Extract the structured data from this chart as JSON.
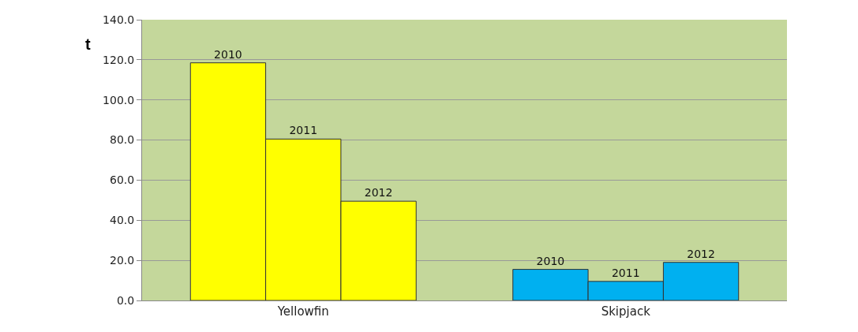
{
  "chart_data": {
    "type": "bar",
    "ylabel": "t",
    "categories": [
      "Yellowfin",
      "Skipjack"
    ],
    "series": [
      {
        "name": "2010",
        "colors": [
          "#ffff00",
          "#00b0f0"
        ],
        "values": [
          118.5,
          15.5
        ]
      },
      {
        "name": "2011",
        "colors": [
          "#ffff00",
          "#00b0f0"
        ],
        "values": [
          80.5,
          9.5
        ]
      },
      {
        "name": "2012",
        "colors": [
          "#ffff00",
          "#00b0f0"
        ],
        "values": [
          49.5,
          19
        ]
      }
    ],
    "ylim": [
      0,
      140
    ],
    "yticks": [
      {
        "value": 0,
        "label": "0.0"
      },
      {
        "value": 20,
        "label": "20.0"
      },
      {
        "value": 40,
        "label": "40.0"
      },
      {
        "value": 60,
        "label": "60.0"
      },
      {
        "value": 80,
        "label": "80.0"
      },
      {
        "value": 100,
        "label": "100.0"
      },
      {
        "value": 120,
        "label": "120.0"
      },
      {
        "value": 140,
        "label": "140.0"
      }
    ],
    "grid": "y",
    "legend": false
  }
}
